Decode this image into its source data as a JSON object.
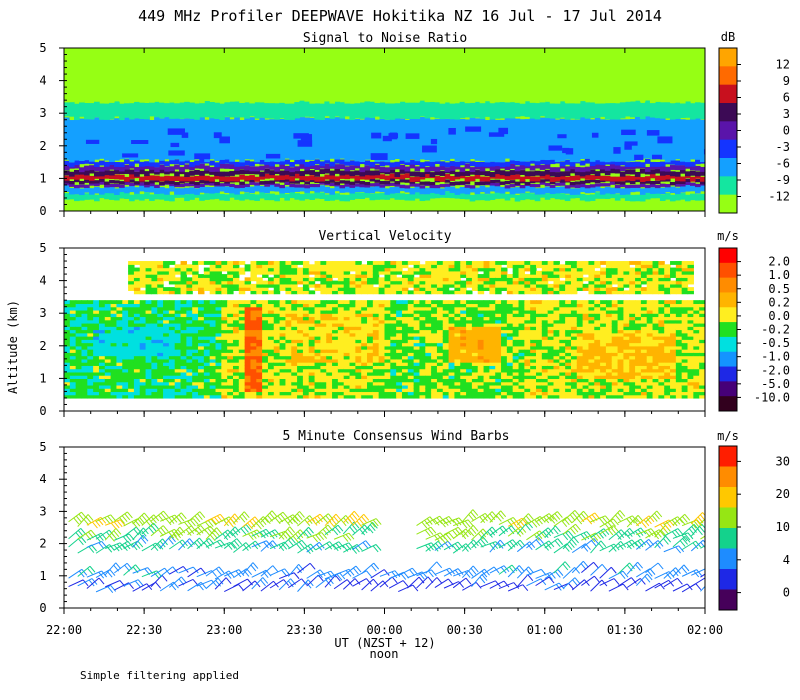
{
  "figure": {
    "title": "449 MHz Profiler DEEPWAVE Hokitika NZ 16 Jul - 17 Jul 2014",
    "ylabel": "Altitude (km)",
    "xlabel": "UT  (NZST + 12)",
    "x_sublabel": "noon",
    "footnote": "Simple filtering applied"
  },
  "chart_data": [
    {
      "type": "heatmap",
      "title": "Signal to Noise Ratio",
      "ylabel": "Altitude (km)",
      "ylim": [
        0,
        5
      ],
      "yticks": [
        0,
        1,
        2,
        3,
        4,
        5
      ],
      "xlim": [
        "22:00",
        "02:00"
      ],
      "xticks": [
        "22:00",
        "22:30",
        "23:00",
        "23:30",
        "00:00",
        "00:30",
        "01:00",
        "01:30",
        "02:00"
      ],
      "colorbar": {
        "units": "dB",
        "ticks": [
          "12",
          "9",
          "6",
          "3",
          "0",
          "-3",
          "-6",
          "-9",
          "-12"
        ],
        "colors": [
          "#ffa500",
          "#ff6a00",
          "#c8101e",
          "#3c0a55",
          "#5a14aa",
          "#1434ff",
          "#14a0ff",
          "#14e6a0",
          "#96ff14"
        ]
      },
      "layers": [
        {
          "bottom": 0.35,
          "top": 0.55,
          "snr_db": -9
        },
        {
          "bottom": 0.55,
          "top": 0.75,
          "snr_db": -6
        },
        {
          "bottom": 0.75,
          "top": 0.85,
          "snr_db": 0
        },
        {
          "bottom": 0.85,
          "top": 0.95,
          "snr_db": 3
        },
        {
          "bottom": 0.95,
          "top": 1.1,
          "snr_db": 6
        },
        {
          "bottom": 1.1,
          "top": 1.25,
          "snr_db": 3
        },
        {
          "bottom": 1.25,
          "top": 1.4,
          "snr_db": 0
        },
        {
          "bottom": 1.4,
          "top": 1.55,
          "snr_db": -3
        },
        {
          "bottom": 1.55,
          "top": 2.85,
          "snr_db": -6
        },
        {
          "bottom": 2.85,
          "top": 3.35,
          "snr_db": -9
        },
        {
          "bottom": 3.35,
          "top": 5.0,
          "snr_db": -12
        }
      ]
    },
    {
      "type": "heatmap",
      "title": "Vertical Velocity",
      "ylabel": "Altitude (km)",
      "ylim": [
        0,
        5
      ],
      "yticks": [
        0,
        1,
        2,
        3,
        4,
        5
      ],
      "xlim": [
        "22:00",
        "02:00"
      ],
      "xticks": [
        "22:00",
        "22:30",
        "23:00",
        "23:30",
        "00:00",
        "00:30",
        "01:00",
        "01:30",
        "02:00"
      ],
      "colorbar": {
        "units": "m/s",
        "ticks": [
          "2.0",
          "1.0",
          "0.5",
          "0.2",
          "0.0",
          "-0.2",
          "-0.5",
          "-1.0",
          "-2.0",
          "-5.0",
          "-10.0"
        ],
        "colors": [
          "#ff0000",
          "#ff5000",
          "#ff8c00",
          "#ffb400",
          "#ffee20",
          "#20e020",
          "#00e0e0",
          "#1494ff",
          "#1e28e6",
          "#460078",
          "#32001e"
        ]
      },
      "data_extent_km": [
        0.4,
        4.6
      ],
      "regions": [
        {
          "t0": 0.0,
          "t1": 0.25,
          "z0": 0.4,
          "z1": 3.4,
          "w": -0.2
        },
        {
          "t0": 0.05,
          "t1": 0.18,
          "z0": 1.7,
          "z1": 2.6,
          "w": -0.4
        },
        {
          "t0": 0.25,
          "t1": 0.5,
          "z0": 0.4,
          "z1": 3.4,
          "w": 0.0
        },
        {
          "t0": 0.35,
          "t1": 0.5,
          "z0": 1.5,
          "z1": 3.0,
          "w": 0.1
        },
        {
          "t0": 0.5,
          "t1": 0.72,
          "z0": 0.4,
          "z1": 3.4,
          "w": -0.1
        },
        {
          "t0": 0.6,
          "t1": 0.68,
          "z0": 1.5,
          "z1": 2.6,
          "w": 0.3
        },
        {
          "t0": 0.72,
          "t1": 1.0,
          "z0": 0.4,
          "z1": 3.4,
          "w": 0.0
        },
        {
          "t0": 0.8,
          "t1": 0.95,
          "z0": 1.0,
          "z1": 2.4,
          "w": 0.2
        },
        {
          "t0": 0.1,
          "t1": 0.98,
          "z0": 3.6,
          "z1": 4.6,
          "w": 0.0
        },
        {
          "t0": 0.28,
          "t1": 0.31,
          "z0": 0.6,
          "z1": 3.2,
          "w": 1.0
        }
      ]
    },
    {
      "type": "scatter",
      "title": "5 Minute Consensus Wind Barbs",
      "ylabel": "Altitude (km)",
      "ylim": [
        0,
        5
      ],
      "yticks": [
        0,
        1,
        2,
        3,
        4,
        5
      ],
      "xlim": [
        "22:00",
        "02:00"
      ],
      "xticks": [
        "22:00",
        "22:30",
        "23:00",
        "23:30",
        "00:00",
        "00:30",
        "01:00",
        "01:30",
        "02:00"
      ],
      "colorbar": {
        "units": "m/s",
        "ticks": [
          "30",
          "20",
          "10",
          "4",
          "0"
        ],
        "colors": [
          "#ff1e00",
          "#ff8c00",
          "#ffc800",
          "#96e614",
          "#14d28c",
          "#1e8cff",
          "#1e28e6",
          "#46005a"
        ]
      },
      "barb_rows": [
        {
          "altitude_km": 0.6,
          "speed_ms": 6
        },
        {
          "altitude_km": 1.0,
          "speed_ms": 8
        },
        {
          "altitude_km": 1.8,
          "speed_ms": 12
        },
        {
          "altitude_km": 2.2,
          "speed_ms": 15
        },
        {
          "altitude_km": 2.6,
          "speed_ms": 18
        }
      ]
    }
  ]
}
